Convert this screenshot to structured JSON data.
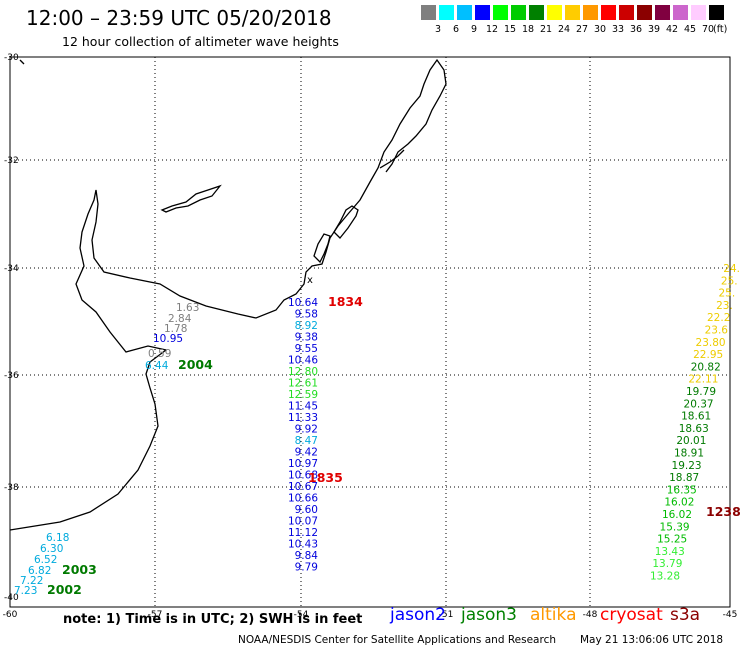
{
  "header": {
    "title": "12:00 – 23:59 UTC 05/20/2018",
    "subtitle": "12 hour collection of altimeter wave heights"
  },
  "legend": {
    "colors": [
      "#7f7f7f",
      "#00ffff",
      "#00bfff",
      "#0000ff",
      "#00ff00",
      "#00cc00",
      "#008000",
      "#ffff00",
      "#ffcc00",
      "#ff9900",
      "#ff0000",
      "#cc0000",
      "#8b0000",
      "#800040",
      "#cc66cc",
      "#ffccff",
      "#000000"
    ],
    "labels": [
      "3",
      "6",
      "9",
      "12",
      "15",
      "18",
      "21",
      "24",
      "27",
      "30",
      "33",
      "36",
      "39",
      "42",
      "45",
      "70"
    ],
    "unit": "(ft)"
  },
  "axes": {
    "lon_labels": [
      "-60",
      "-57",
      "-54",
      "-51",
      "-48",
      "-45"
    ],
    "lat_labels": [
      "-30",
      "-32",
      "-34",
      "-36",
      "-38",
      "-40"
    ]
  },
  "tracks": [
    {
      "time": "1834",
      "time_color": "#e00000",
      "values": [
        {
          "v": "1.63",
          "c": "#7f7f7f"
        },
        {
          "v": "2.84",
          "c": "#7f7f7f"
        },
        {
          "v": "1.78",
          "c": "#7f7f7f"
        },
        {
          "v": "10.95",
          "c": "#0000dd"
        },
        {
          "v": "0.59",
          "c": "#7f7f7f"
        },
        {
          "v": "6.44",
          "c": "#00aadd"
        }
      ]
    },
    {
      "time": "2004",
      "time_color": "#007a00",
      "values": []
    },
    {
      "time": "1835",
      "time_color": "#e00000",
      "values": [
        {
          "v": "10.64",
          "c": "#0000dd"
        },
        {
          "v": "9.58",
          "c": "#0000dd"
        },
        {
          "v": "8.92",
          "c": "#00aadd"
        },
        {
          "v": "9.38",
          "c": "#0000dd"
        },
        {
          "v": "9.55",
          "c": "#0000dd"
        },
        {
          "v": "10.46",
          "c": "#0000dd"
        },
        {
          "v": "12.80",
          "c": "#22dd22"
        },
        {
          "v": "12.61",
          "c": "#22dd22"
        },
        {
          "v": "12.59",
          "c": "#22dd22"
        },
        {
          "v": "11.45",
          "c": "#0000dd"
        },
        {
          "v": "11.33",
          "c": "#0000dd"
        },
        {
          "v": "9.92",
          "c": "#0000dd"
        },
        {
          "v": "8.47",
          "c": "#00aadd"
        },
        {
          "v": "9.42",
          "c": "#0000dd"
        },
        {
          "v": "10.97",
          "c": "#0000dd"
        },
        {
          "v": "10.68",
          "c": "#0000dd"
        },
        {
          "v": "10.67",
          "c": "#0000dd"
        },
        {
          "v": "10.66",
          "c": "#0000dd"
        },
        {
          "v": "9.60",
          "c": "#0000dd"
        },
        {
          "v": "10.07",
          "c": "#0000dd"
        },
        {
          "v": "11.12",
          "c": "#0000dd"
        },
        {
          "v": "10.43",
          "c": "#0000dd"
        },
        {
          "v": "9.84",
          "c": "#0000dd"
        },
        {
          "v": "9.79",
          "c": "#0000dd"
        }
      ]
    },
    {
      "time": "2003",
      "time_color": "#007a00",
      "values": [
        {
          "v": "6.18",
          "c": "#00aadd"
        },
        {
          "v": "6.30",
          "c": "#00aadd"
        },
        {
          "v": "6.52",
          "c": "#00aadd"
        },
        {
          "v": "6.82",
          "c": "#00aadd"
        },
        {
          "v": "7.22",
          "c": "#00aadd"
        },
        {
          "v": "7.23",
          "c": "#00aadd"
        }
      ]
    },
    {
      "time": "2002",
      "time_color": "#007a00",
      "values": []
    },
    {
      "time": "1238",
      "time_color": "#8b0000",
      "values": [
        {
          "v": "24.",
          "c": "#eecc00"
        },
        {
          "v": "25.",
          "c": "#eecc00"
        },
        {
          "v": "25.",
          "c": "#eecc00"
        },
        {
          "v": "23.",
          "c": "#eecc00"
        },
        {
          "v": "22.2",
          "c": "#eecc00"
        },
        {
          "v": "23.6",
          "c": "#eecc00"
        },
        {
          "v": "23.80",
          "c": "#eecc00"
        },
        {
          "v": "22.95",
          "c": "#eecc00"
        },
        {
          "v": "20.82",
          "c": "#007a00"
        },
        {
          "v": "22.11",
          "c": "#eecc00"
        },
        {
          "v": "19.79",
          "c": "#007a00"
        },
        {
          "v": "20.37",
          "c": "#007a00"
        },
        {
          "v": "18.61",
          "c": "#007a00"
        },
        {
          "v": "18.63",
          "c": "#007a00"
        },
        {
          "v": "20.01",
          "c": "#007a00"
        },
        {
          "v": "18.91",
          "c": "#007a00"
        },
        {
          "v": "19.23",
          "c": "#007a00"
        },
        {
          "v": "18.87",
          "c": "#007a00"
        },
        {
          "v": "16.35",
          "c": "#00bb00"
        },
        {
          "v": "16.02",
          "c": "#00bb00"
        },
        {
          "v": "16.02",
          "c": "#00bb00"
        },
        {
          "v": "15.39",
          "c": "#00bb00"
        },
        {
          "v": "15.25",
          "c": "#00bb00"
        },
        {
          "v": "13.43",
          "c": "#33ee33"
        },
        {
          "v": "13.79",
          "c": "#33ee33"
        },
        {
          "v": "13.28",
          "c": "#33ee33"
        }
      ]
    }
  ],
  "footer": {
    "note": "note: 1) Time is in UTC; 2) SWH is in feet",
    "satellites": [
      {
        "name": "jason2",
        "color": "#0000ff"
      },
      {
        "name": "jason3",
        "color": "#008000"
      },
      {
        "name": "altika",
        "color": "#ff9900"
      },
      {
        "name": "cryosat",
        "color": "#ff0000"
      },
      {
        "name": "s3a",
        "color": "#8b0000"
      }
    ],
    "credit": "NOAA/NESDIS Center for Satellite Applications and Research",
    "timestamp": "May 21 13:06:06 UTC 2018"
  }
}
